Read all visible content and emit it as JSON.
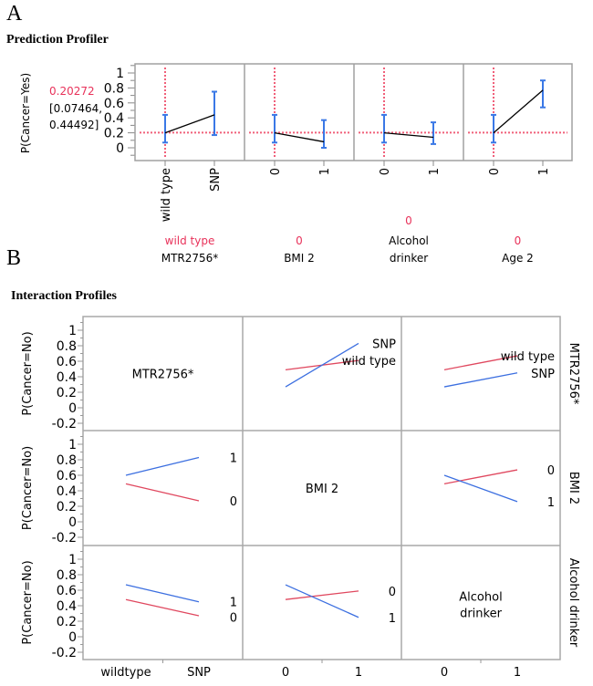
{
  "panel_a_label": "A",
  "panel_b_label": "B",
  "chart_data": [
    {
      "type": "line",
      "title": "Prediction Profiler",
      "ylabel": "P(Cancer=Yes)",
      "ylim": [
        -0.1,
        1.1
      ],
      "yticks": [
        "1",
        "0.8",
        "0.6",
        "0.4",
        "0.2",
        "0"
      ],
      "ytick_values": [
        1,
        0.8,
        0.6,
        0.4,
        0.2,
        0
      ],
      "current_prediction": "0.20272",
      "ci_lower": "[0.07464,",
      "ci_upper": "0.44492]",
      "reference_value": 0.20272,
      "colors": {
        "line": "#000000",
        "errorbar": "#3a78e6",
        "reference": "#f0607a",
        "current": "#e8325a"
      },
      "factors": [
        {
          "name": "MTR2756*",
          "current_value": "wild type",
          "levels": [
            "wild type",
            "SNP"
          ],
          "values": [
            0.2,
            0.44
          ],
          "ci_low": [
            0.07,
            0.17
          ],
          "ci_high": [
            0.44,
            0.75
          ]
        },
        {
          "name_lines": [
            "BMI 2"
          ],
          "name": "BMI 2",
          "current_value": "0",
          "levels": [
            "0",
            "1"
          ],
          "values": [
            0.2,
            0.08
          ],
          "ci_low": [
            0.07,
            0.0
          ],
          "ci_high": [
            0.44,
            0.37
          ]
        },
        {
          "name": "Alcohol drinker",
          "name_lines": [
            "Alcohol",
            "drinker"
          ],
          "current_value": "0",
          "levels": [
            "0",
            "1"
          ],
          "values": [
            0.2,
            0.14
          ],
          "ci_low": [
            0.07,
            0.05
          ],
          "ci_high": [
            0.44,
            0.34
          ]
        },
        {
          "name": "Age 2",
          "current_value": "0",
          "levels": [
            "0",
            "1"
          ],
          "values": [
            0.2,
            0.77
          ],
          "ci_low": [
            0.07,
            0.54
          ],
          "ci_high": [
            0.44,
            0.9
          ]
        }
      ]
    },
    {
      "type": "line",
      "title": "Interaction Profiles",
      "ylabel": "P(Cancer=No)",
      "ylim": [
        -0.3,
        1.15
      ],
      "yticks": [
        "1",
        "0.8",
        "0.6",
        "0.4",
        "0.2",
        "0",
        "-0.2"
      ],
      "ytick_values": [
        1,
        0.8,
        0.6,
        0.4,
        0.2,
        0,
        -0.2
      ],
      "factors": [
        "MTR2756*",
        "BMI 2",
        "Alcohol drinker"
      ],
      "factor_labels": [
        [
          "MTR2756*"
        ],
        [
          "BMI 2"
        ],
        [
          "Alcohol",
          "drinker"
        ]
      ],
      "x_levels": [
        [
          "wild type",
          "SNP"
        ],
        [
          "0",
          "1"
        ],
        [
          "0",
          "1"
        ]
      ],
      "x_tick_labels": [
        [
          "wildtype",
          "SNP"
        ],
        [
          "0",
          "1"
        ],
        [
          "0",
          "1"
        ]
      ],
      "colors": {
        "first_level": "#e0485f",
        "second_level": "#3c6fe0"
      },
      "cells": [
        {
          "row": 0,
          "col": 1,
          "series": [
            {
              "name": "wild type",
              "values": [
                0.49,
                0.61
              ],
              "color": "red"
            },
            {
              "name": "SNP",
              "values": [
                0.27,
                0.83
              ],
              "color": "blue"
            }
          ]
        },
        {
          "row": 0,
          "col": 2,
          "series": [
            {
              "name": "wild type",
              "values": [
                0.49,
                0.67
              ],
              "color": "red"
            },
            {
              "name": "SNP",
              "values": [
                0.27,
                0.45
              ],
              "color": "blue"
            }
          ]
        },
        {
          "row": 1,
          "col": 0,
          "series": [
            {
              "name": "0",
              "values": [
                0.49,
                0.27
              ],
              "color": "red"
            },
            {
              "name": "1",
              "values": [
                0.6,
                0.83
              ],
              "color": "blue"
            }
          ]
        },
        {
          "row": 1,
          "col": 2,
          "series": [
            {
              "name": "0",
              "values": [
                0.49,
                0.67
              ],
              "color": "red"
            },
            {
              "name": "1",
              "values": [
                0.6,
                0.26
              ],
              "color": "blue"
            }
          ]
        },
        {
          "row": 2,
          "col": 0,
          "series": [
            {
              "name": "0",
              "values": [
                0.48,
                0.27
              ],
              "color": "red"
            },
            {
              "name": "1",
              "values": [
                0.67,
                0.45
              ],
              "color": "blue"
            }
          ]
        },
        {
          "row": 2,
          "col": 1,
          "series": [
            {
              "name": "0",
              "values": [
                0.48,
                0.59
              ],
              "color": "red"
            },
            {
              "name": "1",
              "values": [
                0.67,
                0.25
              ],
              "color": "blue"
            }
          ]
        }
      ]
    }
  ]
}
